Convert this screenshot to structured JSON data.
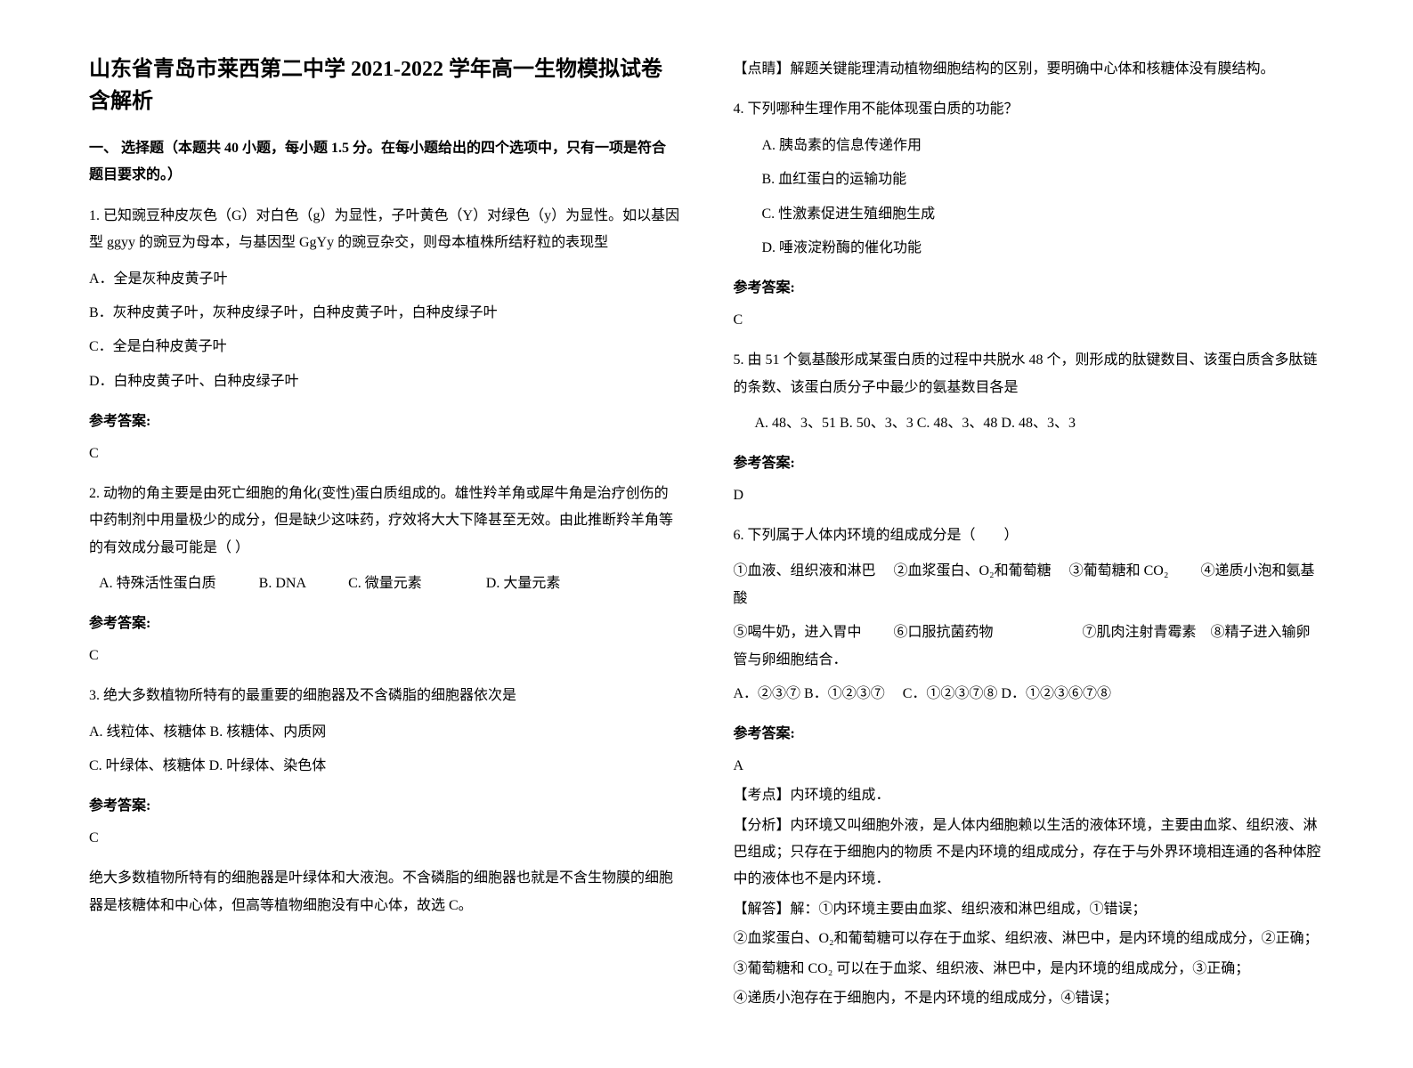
{
  "doc_title_line1": "山东省青岛市莱西第二中学 2021-2022 学年高一生物模拟试卷含解析",
  "section1_header": "一、 选择题（本题共 40 小题，每小题 1.5 分。在每小题给出的四个选项中，只有一项是符合题目要求的。）",
  "q1": {
    "text": "1. 已知豌豆种皮灰色（G）对白色（g）为显性，子叶黄色（Y）对绿色（y）为显性。如以基因型 ggyy 的豌豆为母本，与基因型 GgYy 的豌豆杂交，则母本植株所结籽粒的表现型",
    "opt_a": "A．全是灰种皮黄子叶",
    "opt_b": "B．灰种皮黄子叶，灰种皮绿子叶，白种皮黄子叶，白种皮绿子叶",
    "opt_c": "C．全是白种皮黄子叶",
    "opt_d": "D．白种皮黄子叶、白种皮绿子叶",
    "ans_label": "参考答案:",
    "ans": "C"
  },
  "q2": {
    "text": "2. 动物的角主要是由死亡细胞的角化(变性)蛋白质组成的。雄性羚羊角或犀牛角是治疗创伤的中药制剂中用量极少的成分，但是缺少这味药，疗效将大大下降甚至无效。由此推断羚羊角等的有效成分最可能是（   ）",
    "options": "   A. 特殊活性蛋白质            B. DNA            C. 微量元素                  D. 大量元素",
    "ans_label": "参考答案:",
    "ans": "C"
  },
  "q3": {
    "text": "3. 绝大多数植物所特有的最重要的细胞器及不含磷脂的细胞器依次是",
    "opt_a": "A.  线粒体、核糖体       B.  核糖体、内质网",
    "opt_c": "C.  叶绿体、核糖体       D.  叶绿体、染色体",
    "ans_label": "参考答案:",
    "ans": "C",
    "explain1": "绝大多数植物所特有的细胞器是叶绿体和大液泡。不含磷脂的细胞器也就是不含生物膜的细胞器是核糖体和中心体，但高等植物细胞没有中心体，故选 C。",
    "explain2": "【点睛】解题关键能理清动植物细胞结构的区别，要明确中心体和核糖体没有膜结构。"
  },
  "q4": {
    "text": "4. 下列哪种生理作用不能体现蛋白质的功能？",
    "opt_a": "A. 胰岛素的信息传递作用",
    "opt_b": "B. 血红蛋白的运输功能",
    "opt_c": "C. 性激素促进生殖细胞生成",
    "opt_d": "D. 唾液淀粉酶的催化功能",
    "ans_label": "参考答案:",
    "ans": "C"
  },
  "q5": {
    "text": "5. 由 51 个氨基酸形成某蛋白质的过程中共脱水 48 个，则形成的肽键数目、该蛋白质含多肽链的条数、该蛋白质分子中最少的氨基数目各是",
    "options": "A. 48、3、51     B. 50、3、3    C. 48、3、48    D. 48、3、3",
    "ans_label": "参考答案:",
    "ans": "D"
  },
  "q6": {
    "text": "6. 下列属于人体内环境的组成成分是（　　）",
    "items1": "①血液、组织液和淋巴　 ②血浆蛋白、O₂和葡萄糖　 ③葡萄糖和 CO₂　　 ④递质小泡和氨基酸",
    "items2": "⑤喝牛奶，进入胃中　　 ⑥口服抗菌药物　　　　　　 ⑦肌肉注射青霉素　⑧精子进入输卵管与卵细胞结合．",
    "options": "A．②③⑦  B．①②③⑦　   C．①②③⑦⑧   D．①②③⑥⑦⑧",
    "ans_label": "参考答案:",
    "ans": "A",
    "kp": "【考点】内环境的组成．",
    "analysis": "【分析】内环境又叫细胞外液，是人体内细胞赖以生活的液体环境，主要由血浆、组织液、淋巴组成；只存在于细胞内的物质 不是内环境的组成成分，存在于与外界环境相连通的各种体腔中的液体也不是内环境．",
    "sol_label": "【解答】解：①内环境主要由血浆、组织液和淋巴组成，①错误；",
    "sol2": "②血浆蛋白、O₂和葡萄糖可以存在于血浆、组织液、淋巴中，是内环境的组成成分，②正确；",
    "sol3": "③葡萄糖和 CO₂ 可以在于血浆、组织液、淋巴中，是内环境的组成成分，③正确；",
    "sol4": "④递质小泡存在于细胞内，不是内环境的组成成分，④错误；"
  }
}
